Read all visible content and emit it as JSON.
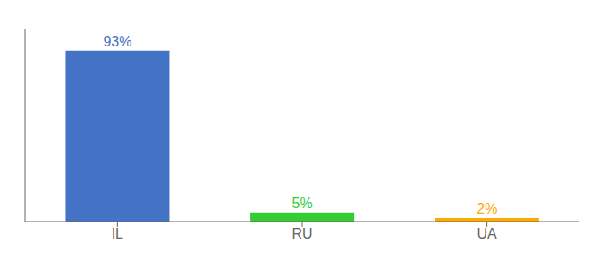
{
  "chart_data": {
    "type": "bar",
    "categories": [
      "IL",
      "RU",
      "UA"
    ],
    "values": [
      93,
      5,
      2
    ],
    "value_labels": [
      "93%",
      "5%",
      "2%"
    ],
    "colors": [
      "#4472c4",
      "#33cc33",
      "#ffaa00"
    ],
    "ylim": [
      0,
      105
    ],
    "yticks": [],
    "tick_labels": "x",
    "data_labels": true,
    "grid": false
  }
}
